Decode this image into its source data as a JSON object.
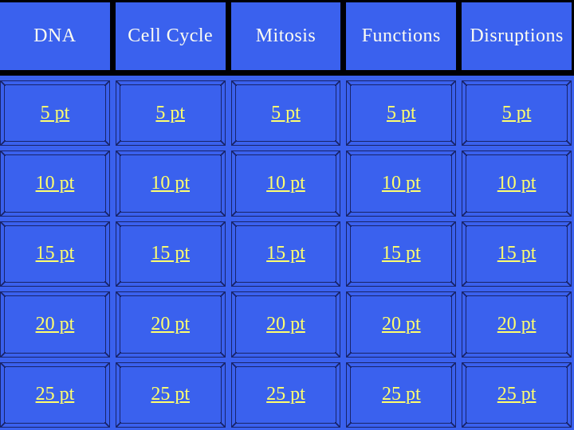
{
  "board": {
    "categories": [
      "DNA",
      "Cell Cycle",
      "Mitosis",
      "Functions",
      "Disruptions"
    ],
    "point_values": [
      "5 pt",
      "10 pt",
      "15 pt",
      "20 pt",
      "25 pt"
    ],
    "cells": [
      [
        "5 pt",
        "5 pt",
        "5 pt",
        "5 pt",
        "5 pt"
      ],
      [
        "10 pt",
        "10 pt",
        "10 pt",
        "10 pt",
        "10 pt"
      ],
      [
        "15 pt",
        "15 pt",
        "15 pt",
        "15 pt",
        "15 pt"
      ],
      [
        "20 pt",
        "20 pt",
        "20 pt",
        "20 pt",
        "20 pt"
      ],
      [
        "25 pt",
        "25 pt",
        "25 pt",
        "25 pt",
        "25 pt"
      ]
    ]
  },
  "colors": {
    "blue": "#3A61EE",
    "navy": "#18246A",
    "black": "#000005",
    "yellow": "#FFFF6E",
    "white": "#FCFCF2"
  }
}
